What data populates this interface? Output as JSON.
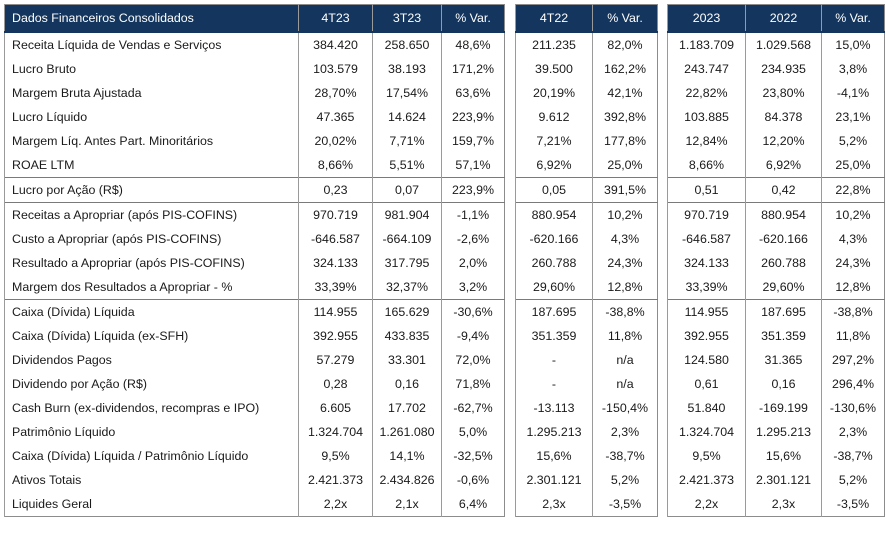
{
  "headers": {
    "label": "Dados Financeiros Consolidados",
    "t1": [
      "4T23",
      "3T23",
      "% Var."
    ],
    "t2": [
      "4T22",
      "% Var."
    ],
    "t3": [
      "2023",
      "2022",
      "% Var."
    ]
  },
  "rows": [
    {
      "label": "Receita Líquida de Vendas e Serviços",
      "t1": [
        "384.420",
        "258.650",
        "48,6%"
      ],
      "t2": [
        "211.235",
        "82,0%"
      ],
      "t3": [
        "1.183.709",
        "1.029.568",
        "15,0%"
      ]
    },
    {
      "label": "Lucro Bruto",
      "t1": [
        "103.579",
        "38.193",
        "171,2%"
      ],
      "t2": [
        "39.500",
        "162,2%"
      ],
      "t3": [
        "243.747",
        "234.935",
        "3,8%"
      ]
    },
    {
      "label": "Margem Bruta Ajustada",
      "t1": [
        "28,70%",
        "17,54%",
        "63,6%"
      ],
      "t2": [
        "20,19%",
        "42,1%"
      ],
      "t3": [
        "22,82%",
        "23,80%",
        "-4,1%"
      ]
    },
    {
      "label": "Lucro Líquido",
      "t1": [
        "47.365",
        "14.624",
        "223,9%"
      ],
      "t2": [
        "9.612",
        "392,8%"
      ],
      "t3": [
        "103.885",
        "84.378",
        "23,1%"
      ]
    },
    {
      "label": "Margem Líq. Antes Part. Minoritários",
      "t1": [
        "20,02%",
        "7,71%",
        "159,7%"
      ],
      "t2": [
        "7,21%",
        "177,8%"
      ],
      "t3": [
        "12,84%",
        "12,20%",
        "5,2%"
      ]
    },
    {
      "label": "ROAE LTM",
      "t1": [
        "8,66%",
        "5,51%",
        "57,1%"
      ],
      "t2": [
        "6,92%",
        "25,0%"
      ],
      "t3": [
        "8,66%",
        "6,92%",
        "25,0%"
      ]
    },
    {
      "label": "Lucro por Ação (R$)",
      "t1": [
        "0,23",
        "0,07",
        "223,9%"
      ],
      "t2": [
        "0,05",
        "391,5%"
      ],
      "t3": [
        "0,51",
        "0,42",
        "22,8%"
      ]
    },
    {
      "label": "Receitas a Apropriar (após PIS-COFINS)",
      "t1": [
        "970.719",
        "981.904",
        "-1,1%"
      ],
      "t2": [
        "880.954",
        "10,2%"
      ],
      "t3": [
        "970.719",
        "880.954",
        "10,2%"
      ]
    },
    {
      "label": "Custo a Apropriar (após PIS-COFINS)",
      "t1": [
        "-646.587",
        "-664.109",
        "-2,6%"
      ],
      "t2": [
        "-620.166",
        "4,3%"
      ],
      "t3": [
        "-646.587",
        "-620.166",
        "4,3%"
      ]
    },
    {
      "label": "Resultado a Apropriar (após PIS-COFINS)",
      "t1": [
        "324.133",
        "317.795",
        "2,0%"
      ],
      "t2": [
        "260.788",
        "24,3%"
      ],
      "t3": [
        "324.133",
        "260.788",
        "24,3%"
      ]
    },
    {
      "label": "Margem dos Resultados a Apropriar - %",
      "t1": [
        "33,39%",
        "32,37%",
        "3,2%"
      ],
      "t2": [
        "29,60%",
        "12,8%"
      ],
      "t3": [
        "33,39%",
        "29,60%",
        "12,8%"
      ]
    },
    {
      "label": "Caixa (Dívida) Líquida",
      "t1": [
        "114.955",
        "165.629",
        "-30,6%"
      ],
      "t2": [
        "187.695",
        "-38,8%"
      ],
      "t3": [
        "114.955",
        "187.695",
        "-38,8%"
      ]
    },
    {
      "label": "Caixa (Dívida) Líquida (ex-SFH)",
      "t1": [
        "392.955",
        "433.835",
        "-9,4%"
      ],
      "t2": [
        "351.359",
        "11,8%"
      ],
      "t3": [
        "392.955",
        "351.359",
        "11,8%"
      ]
    },
    {
      "label": "Dividendos Pagos",
      "t1": [
        "57.279",
        "33.301",
        "72,0%"
      ],
      "t2": [
        "-",
        "n/a"
      ],
      "t3": [
        "124.580",
        "31.365",
        "297,2%"
      ]
    },
    {
      "label": "Dividendo por Ação  (R$)",
      "t1": [
        "0,28",
        "0,16",
        "71,8%"
      ],
      "t2": [
        "-",
        "n/a"
      ],
      "t3": [
        "0,61",
        "0,16",
        "296,4%"
      ]
    },
    {
      "label": "Cash Burn (ex-dividendos, recompras e IPO)",
      "t1": [
        "6.605",
        "17.702",
        "-62,7%"
      ],
      "t2": [
        "-13.113",
        "-150,4%"
      ],
      "t3": [
        "51.840",
        "-169.199",
        "-130,6%"
      ]
    },
    {
      "label": "Patrimônio Líquido",
      "t1": [
        "1.324.704",
        "1.261.080",
        "5,0%"
      ],
      "t2": [
        "1.295.213",
        "2,3%"
      ],
      "t3": [
        "1.324.704",
        "1.295.213",
        "2,3%"
      ]
    },
    {
      "label": "Caixa (Dívida) Líquida / Patrimônio Líquido",
      "t1": [
        "9,5%",
        "14,1%",
        "-32,5%"
      ],
      "t2": [
        "15,6%",
        "-38,7%"
      ],
      "t3": [
        "9,5%",
        "15,6%",
        "-38,7%"
      ]
    },
    {
      "label": "Ativos Totais",
      "t1": [
        "2.421.373",
        "2.434.826",
        "-0,6%"
      ],
      "t2": [
        "2.301.121",
        "5,2%"
      ],
      "t3": [
        "2.421.373",
        "2.301.121",
        "5,2%"
      ]
    },
    {
      "label": "Liquides Geral",
      "t1": [
        "2,2x",
        "2,1x",
        "6,4%"
      ],
      "t2": [
        "2,3x",
        "-3,5%"
      ],
      "t3": [
        "2,2x",
        "2,3x",
        "-3,5%"
      ]
    }
  ],
  "colors": {
    "header_bg": "#14365e",
    "header_text": "#ffffff"
  }
}
